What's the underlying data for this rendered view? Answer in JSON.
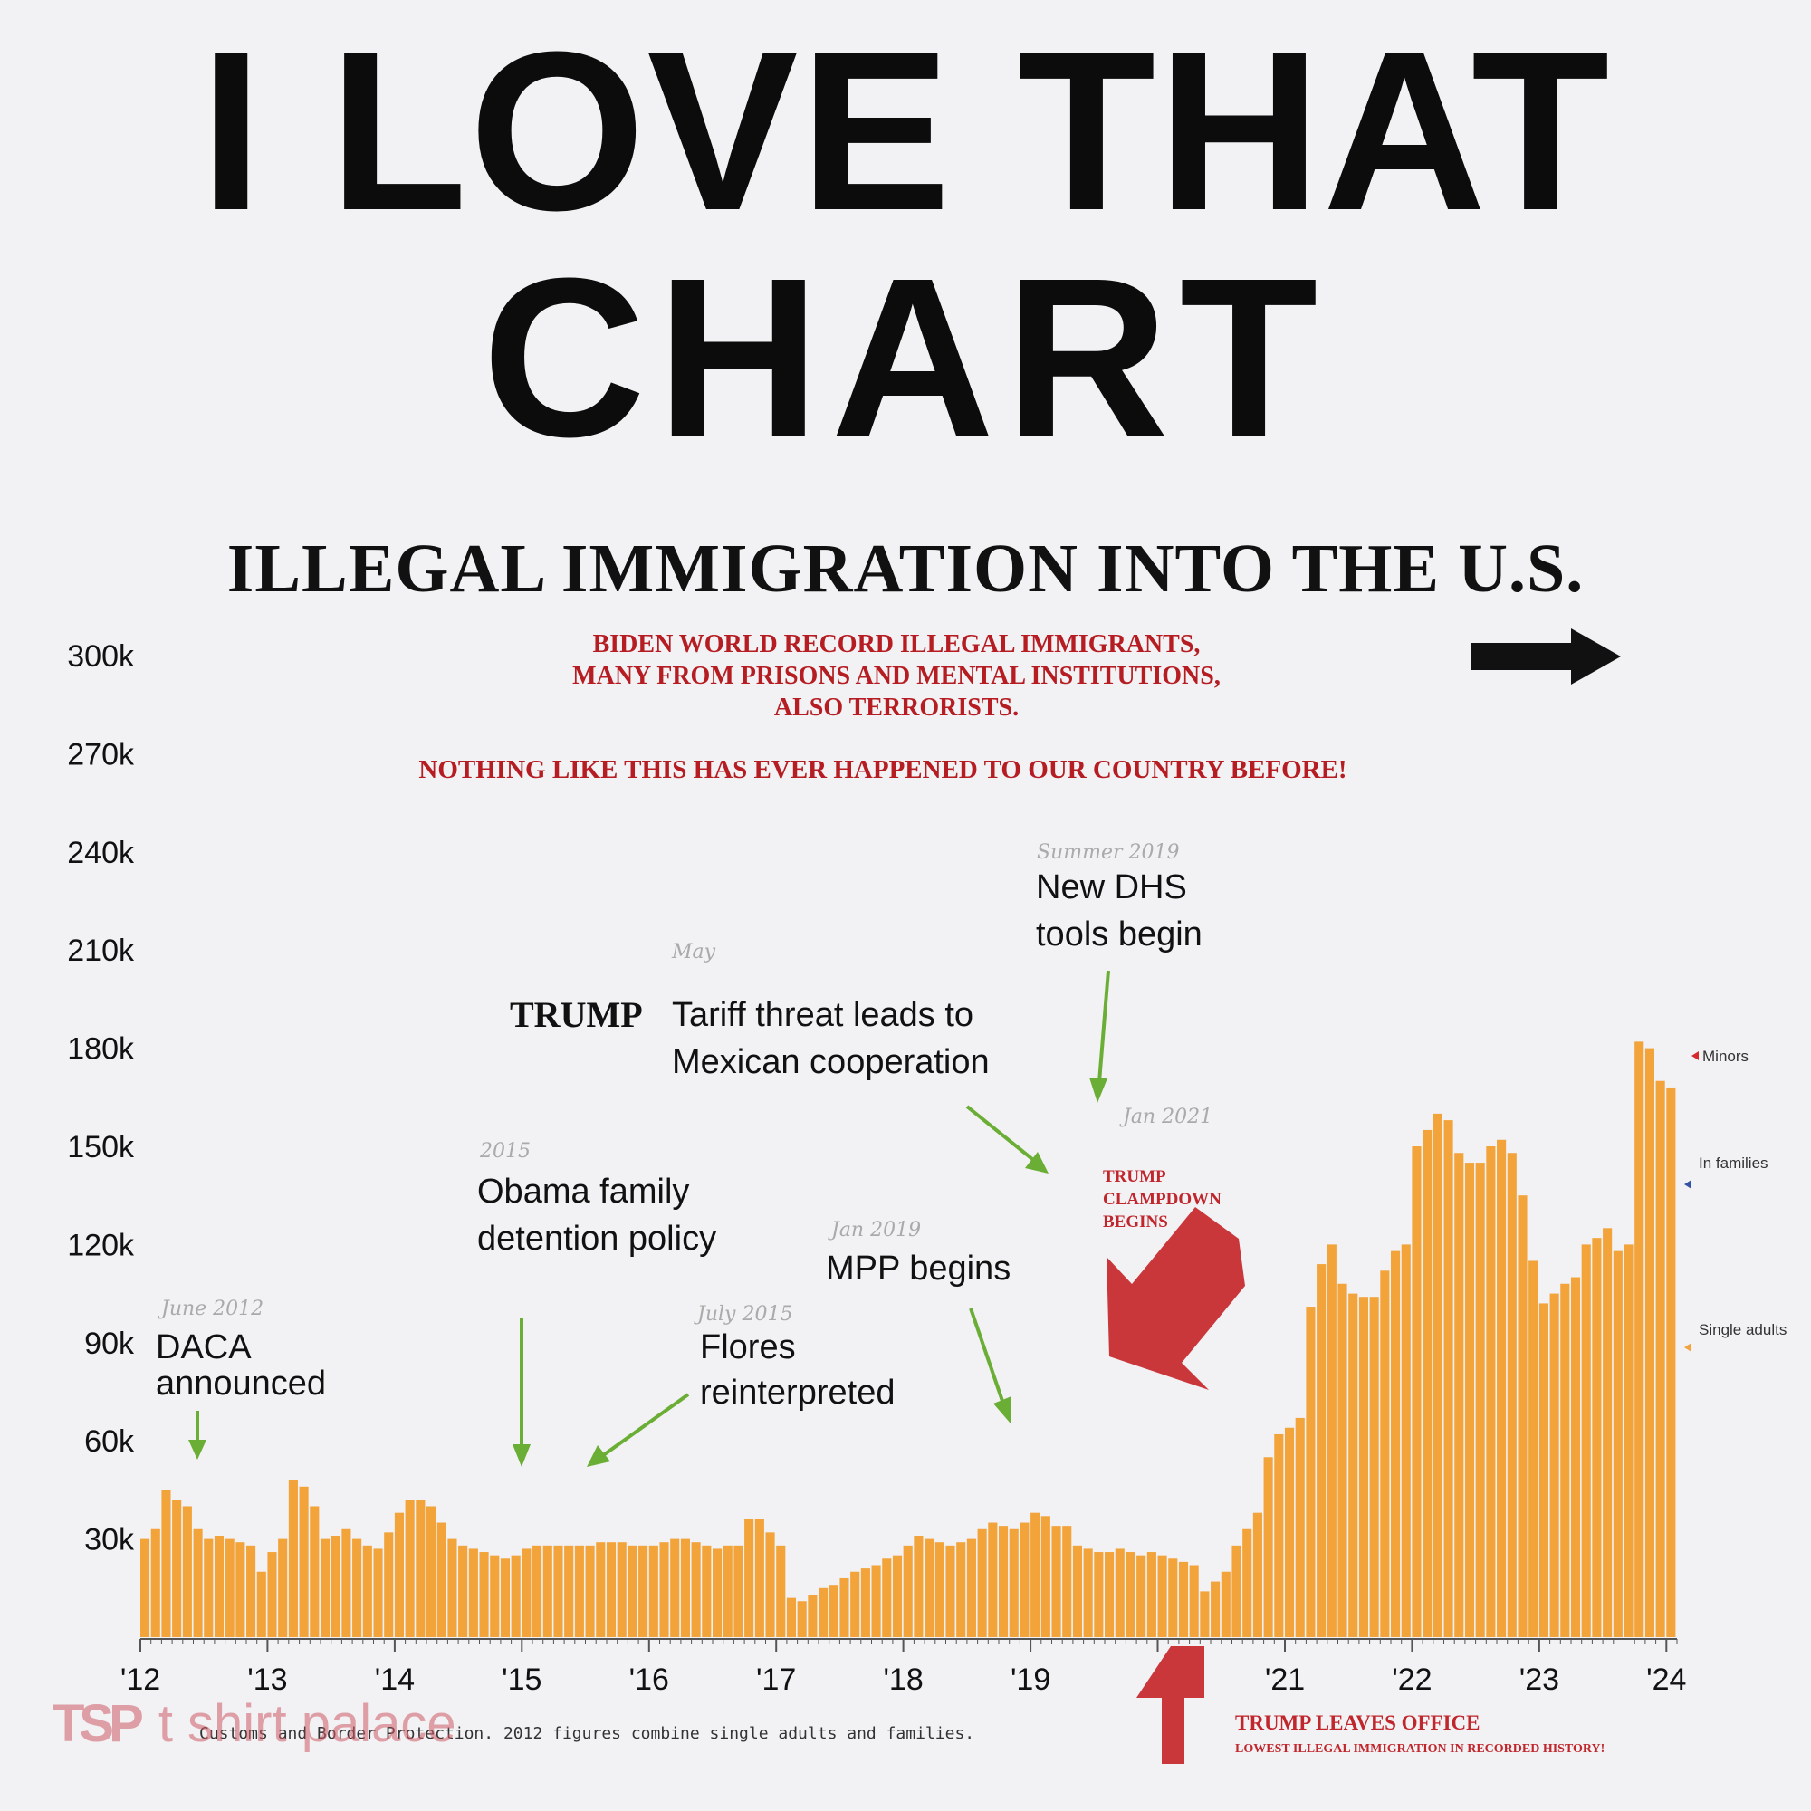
{
  "headline": {
    "line1": "I LOVE THAT",
    "line2": "CHART"
  },
  "chart_data": {
    "type": "bar",
    "stacked": true,
    "title": "ILLEGAL IMMIGRATION INTO THE U.S.",
    "subtitle_lines": [
      "BIDEN WORLD RECORD ILLEGAL IMMIGRANTS,",
      "MANY FROM PRISONS AND MENTAL INSTITUTIONS,",
      "ALSO TERRORISTS."
    ],
    "subtitle2": "NOTHING LIKE THIS HAS EVER HAPPENED TO OUR COUNTRY BEFORE!",
    "y_ticks": [
      "30k",
      "60k",
      "90k",
      "120k",
      "150k",
      "180k",
      "210k",
      "240k",
      "270k",
      "300k"
    ],
    "x_ticks": [
      "'12",
      "'13",
      "'14",
      "'15",
      "'16",
      "'17",
      "'18",
      "'19",
      "'21",
      "'22",
      "'23",
      "'24"
    ],
    "ylim": [
      0,
      300000
    ],
    "x_start": 2012.0,
    "x_step_years": 0.0833,
    "colors": {
      "single": "#f2a33a",
      "families": "#3553a5",
      "minors": "#d42a2e"
    },
    "series": [
      {
        "name": "Single adults",
        "values": [
          30000,
          33000,
          45000,
          42000,
          40000,
          33000,
          30000,
          31000,
          30000,
          29000,
          28000,
          20000,
          26000,
          30000,
          48000,
          46000,
          40000,
          30000,
          31000,
          33000,
          30000,
          28000,
          27000,
          32000,
          38000,
          42000,
          42000,
          40000,
          35000,
          30000,
          28000,
          27000,
          26000,
          25000,
          24000,
          25000,
          27000,
          28000,
          28000,
          28000,
          28000,
          28000,
          28000,
          29000,
          29000,
          29000,
          28000,
          28000,
          28000,
          29000,
          30000,
          30000,
          29000,
          28000,
          27000,
          28000,
          28000,
          36000,
          36000,
          32000,
          28000,
          12000,
          11000,
          13000,
          15000,
          16000,
          18000,
          20000,
          21000,
          22000,
          24000,
          25000,
          28000,
          31000,
          30000,
          29000,
          28000,
          29000,
          30000,
          33000,
          35000,
          34000,
          33000,
          35000,
          38000,
          37000,
          34000,
          34000,
          28000,
          27000,
          26000,
          26000,
          27000,
          26000,
          25000,
          26000,
          25000,
          24000,
          23000,
          22000,
          14000,
          17000,
          20000,
          28000,
          33000,
          38000,
          55000,
          62000,
          64000,
          67000,
          101000,
          114000,
          120000,
          108000,
          105000,
          104000,
          104000,
          112000,
          118000,
          120000,
          150000,
          155000,
          160000,
          158000,
          148000,
          145000,
          145000,
          150000,
          152000,
          148000,
          135000,
          115000,
          102000,
          105000,
          108000,
          110000,
          120000,
          122000,
          125000,
          118000,
          120000,
          182000,
          180000,
          170000,
          168000
        ]
      },
      {
        "name": "In families",
        "values": [
          0,
          0,
          0,
          0,
          0,
          0,
          0,
          0,
          0,
          0,
          0,
          0,
          0,
          0,
          0,
          0,
          0,
          0,
          0,
          0,
          0,
          0,
          0,
          0,
          0,
          0,
          0,
          0,
          0,
          0,
          0,
          0,
          0,
          0,
          0,
          0,
          0,
          0,
          0,
          0,
          0,
          0,
          0,
          0,
          0,
          0,
          0,
          0,
          0,
          0,
          0,
          0,
          0,
          0,
          0,
          0,
          0,
          0,
          0,
          0,
          0,
          0,
          0,
          0,
          0,
          0,
          0,
          0,
          0,
          0,
          0,
          0,
          0,
          0,
          0,
          0,
          0,
          0,
          0,
          0,
          0,
          0,
          0,
          0,
          0,
          0,
          0,
          0,
          0,
          0,
          0,
          0,
          0,
          0,
          0,
          0,
          0,
          0,
          0,
          0,
          0,
          0,
          0,
          0,
          0,
          0,
          0,
          0,
          0,
          0,
          0,
          0,
          0,
          0,
          0,
          0,
          0,
          0,
          0,
          0,
          0,
          0,
          0,
          0,
          0,
          0,
          0,
          0,
          0,
          0,
          0,
          0,
          0,
          0,
          0,
          0,
          0,
          0,
          0,
          0,
          0,
          0,
          0,
          0,
          0
        ]
      },
      {
        "name": "Minors",
        "values": [
          0,
          0,
          0,
          0,
          0,
          0,
          0,
          0,
          0,
          0,
          0,
          0,
          0,
          0,
          0,
          0,
          0,
          0,
          0,
          0,
          0,
          0,
          0,
          0,
          0,
          0,
          0,
          0,
          0,
          0,
          0,
          0,
          0,
          0,
          0,
          0,
          0,
          0,
          0,
          0,
          0,
          0,
          0,
          0,
          0,
          0,
          0,
          0,
          0,
          0,
          0,
          0,
          0,
          0,
          0,
          0,
          0,
          0,
          0,
          0,
          0,
          0,
          0,
          0,
          0,
          0,
          0,
          0,
          0,
          0,
          0,
          0,
          0,
          0,
          0,
          0,
          0,
          0,
          0,
          0,
          0,
          0,
          0,
          0,
          0,
          0,
          0,
          0,
          0,
          0,
          0,
          0,
          0,
          0,
          0,
          0,
          0,
          0,
          0,
          0,
          0,
          0,
          0,
          0,
          0,
          0,
          0,
          0,
          0,
          0,
          0,
          0,
          0,
          0,
          0,
          0,
          0,
          0,
          0,
          0,
          0,
          0,
          0,
          0,
          0,
          0,
          0,
          0,
          0,
          0,
          0,
          0,
          0,
          0,
          0,
          0,
          0,
          0,
          0,
          0,
          0,
          0,
          0,
          0,
          0
        ]
      }
    ],
    "legend": {
      "minors": "Minors",
      "families": "In families",
      "single": "Single adults"
    },
    "annotations": {
      "daca": {
        "date": "June 2012",
        "line1": "DACA",
        "line2": "announced"
      },
      "obama": {
        "date": "2015",
        "line1": "Obama family",
        "line2": "detention policy"
      },
      "flores": {
        "date": "July 2015",
        "line1": "Flores",
        "line2": "reinterpreted"
      },
      "tariff": {
        "date": "May",
        "prefix": "TRUMP",
        "line1": "Tariff threat leads to",
        "line2": "Mexican cooperation"
      },
      "dhs": {
        "date": "Summer 2019",
        "line1": "New DHS",
        "line2": "tools begin"
      },
      "mpp": {
        "date": "Jan 2019",
        "line1": "MPP begins"
      },
      "clampdown": {
        "date": "Jan 2021",
        "line1": "TRUMP",
        "line2": "CLAMPDOWN",
        "line3": "BEGINS"
      }
    },
    "footer": "Customs and Border Protection. 2012 figures combine single adults and families.",
    "leaves_office": {
      "line1": "TRUMP LEAVES OFFICE",
      "line2": "LOWEST ILLEGAL IMMIGRATION IN RECORDED HISTORY!"
    }
  },
  "watermark": {
    "logo": "TSP",
    "text": "t shirt palace"
  }
}
